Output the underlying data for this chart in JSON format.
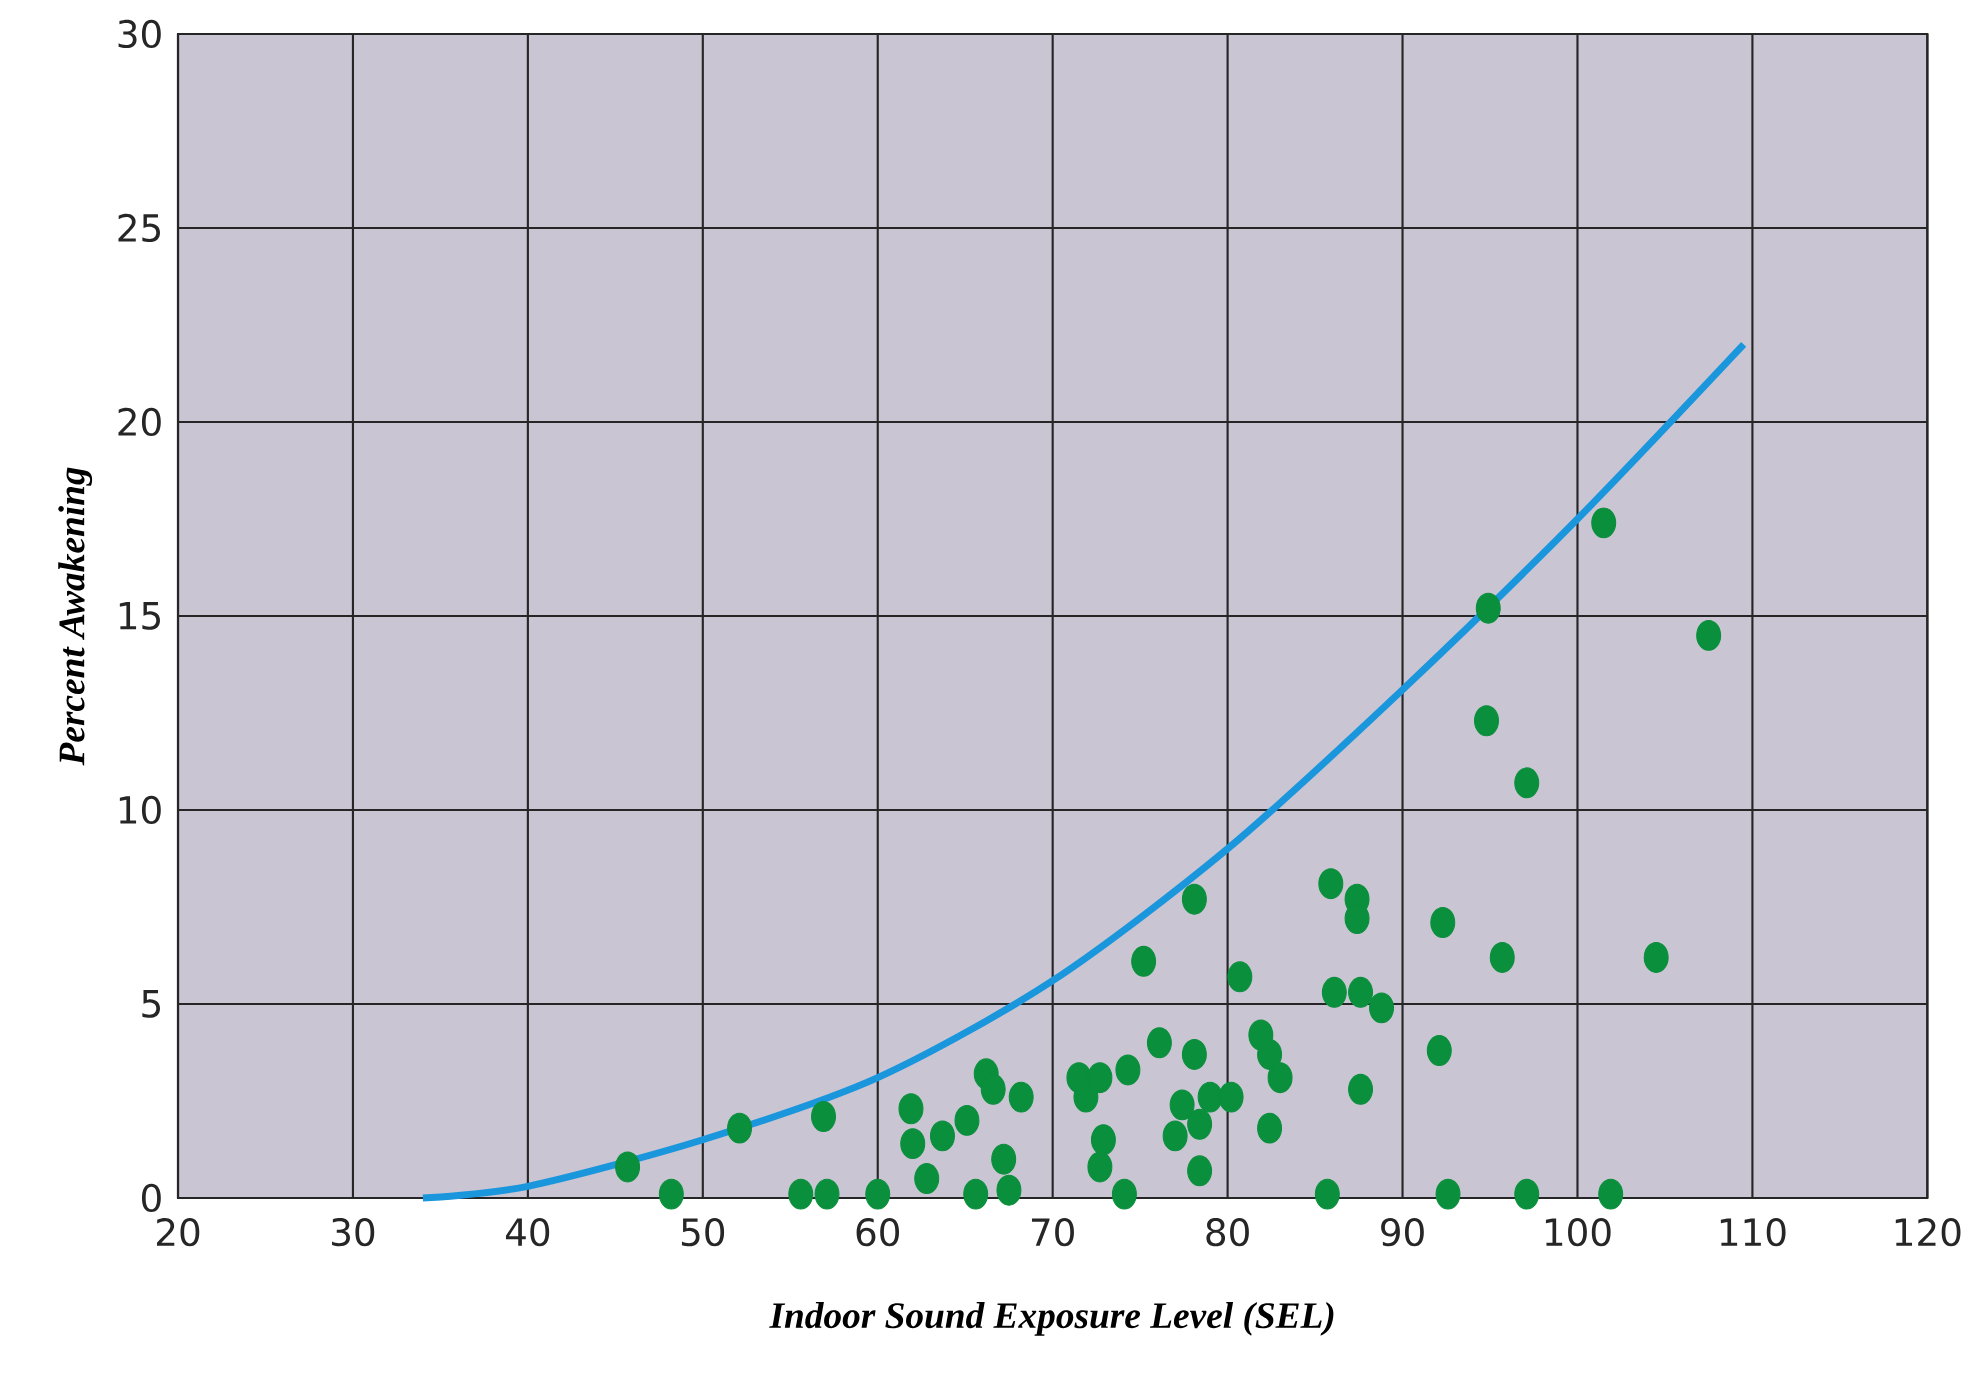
{
  "chart_data": {
    "type": "scatter",
    "xlabel": "Indoor Sound Exposure Level  (SEL)",
    "ylabel": "Percent Awakening",
    "xlim": [
      20,
      120
    ],
    "xticks": [
      20,
      30,
      40,
      50,
      60,
      70,
      80,
      90,
      100,
      110,
      120
    ],
    "ylim": [
      0,
      30
    ],
    "yticks": [
      0,
      5,
      10,
      15,
      20,
      25,
      30
    ],
    "grid": true,
    "series": [
      {
        "color": "#0a8f3c",
        "marker": "circle",
        "x": [
          45.7,
          48.2,
          52.1,
          55.6,
          56.9,
          57.1,
          60.0,
          61.9,
          62.0,
          62.8,
          63.7,
          65.1,
          65.6,
          66.2,
          66.6,
          67.2,
          67.5,
          68.2,
          71.5,
          71.9,
          72.7,
          72.7,
          72.9,
          74.1,
          74.3,
          75.2,
          76.1,
          77.0,
          77.4,
          78.1,
          78.1,
          78.4,
          78.4,
          79.0,
          80.2,
          80.7,
          81.9,
          82.4,
          82.4,
          83.0,
          85.7,
          85.9,
          86.1,
          87.4,
          87.4,
          87.6,
          87.6,
          88.8,
          92.1,
          92.3,
          92.6,
          94.9,
          94.8,
          95.7,
          97.1,
          97.1,
          101.5,
          101.9,
          104.5,
          107.5
        ],
        "values": [
          0.8,
          0.1,
          1.8,
          0.1,
          2.1,
          0.1,
          0.1,
          2.3,
          1.4,
          0.5,
          1.6,
          2.0,
          0.1,
          3.2,
          2.8,
          1.0,
          0.2,
          2.6,
          3.1,
          2.6,
          3.1,
          0.8,
          1.5,
          0.1,
          3.3,
          6.1,
          4.0,
          1.6,
          2.4,
          3.7,
          7.7,
          1.9,
          0.7,
          2.6,
          2.6,
          5.7,
          4.2,
          3.7,
          1.8,
          3.1,
          0.1,
          8.1,
          5.3,
          7.7,
          7.2,
          5.3,
          2.8,
          4.9,
          3.8,
          7.1,
          0.1,
          15.2,
          12.3,
          6.2,
          10.7,
          0.1,
          17.4,
          0.1,
          6.2,
          14.5
        ]
      },
      {
        "type": "line",
        "color": "#1a96dc",
        "marker": "none",
        "line_style": "solid",
        "x": [
          34,
          40,
          50,
          60,
          70,
          80,
          90,
          100,
          109.5
        ],
        "values": [
          0,
          0.3,
          1.5,
          3.1,
          5.6,
          9.0,
          13.1,
          17.5,
          22.0
        ]
      }
    ]
  }
}
